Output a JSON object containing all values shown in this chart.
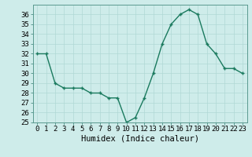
{
  "x": [
    0,
    1,
    2,
    3,
    4,
    5,
    6,
    7,
    8,
    9,
    10,
    11,
    12,
    13,
    14,
    15,
    16,
    17,
    18,
    19,
    20,
    21,
    22,
    23
  ],
  "y": [
    32,
    32,
    29,
    28.5,
    28.5,
    28.5,
    28,
    28,
    27.5,
    27.5,
    25,
    25.5,
    27.5,
    30,
    33,
    35,
    36,
    36.5,
    36,
    33,
    32,
    30.5,
    30.5,
    30
  ],
  "line_color": "#1a7a5e",
  "marker": "+",
  "marker_size": 3,
  "line_width": 1.0,
  "background_color": "#ceecea",
  "grid_color": "#b0d8d5",
  "xlabel": "Humidex (Indice chaleur)",
  "xlim": [
    -0.5,
    23.5
  ],
  "ylim": [
    25,
    37
  ],
  "yticks": [
    25,
    26,
    27,
    28,
    29,
    30,
    31,
    32,
    33,
    34,
    35,
    36
  ],
  "xtick_labels": [
    "0",
    "1",
    "2",
    "3",
    "4",
    "5",
    "6",
    "7",
    "8",
    "9",
    "10",
    "11",
    "12",
    "13",
    "14",
    "15",
    "16",
    "17",
    "18",
    "19",
    "20",
    "21",
    "22",
    "23"
  ],
  "xlabel_fontsize": 7.5,
  "tick_fontsize": 6.5
}
